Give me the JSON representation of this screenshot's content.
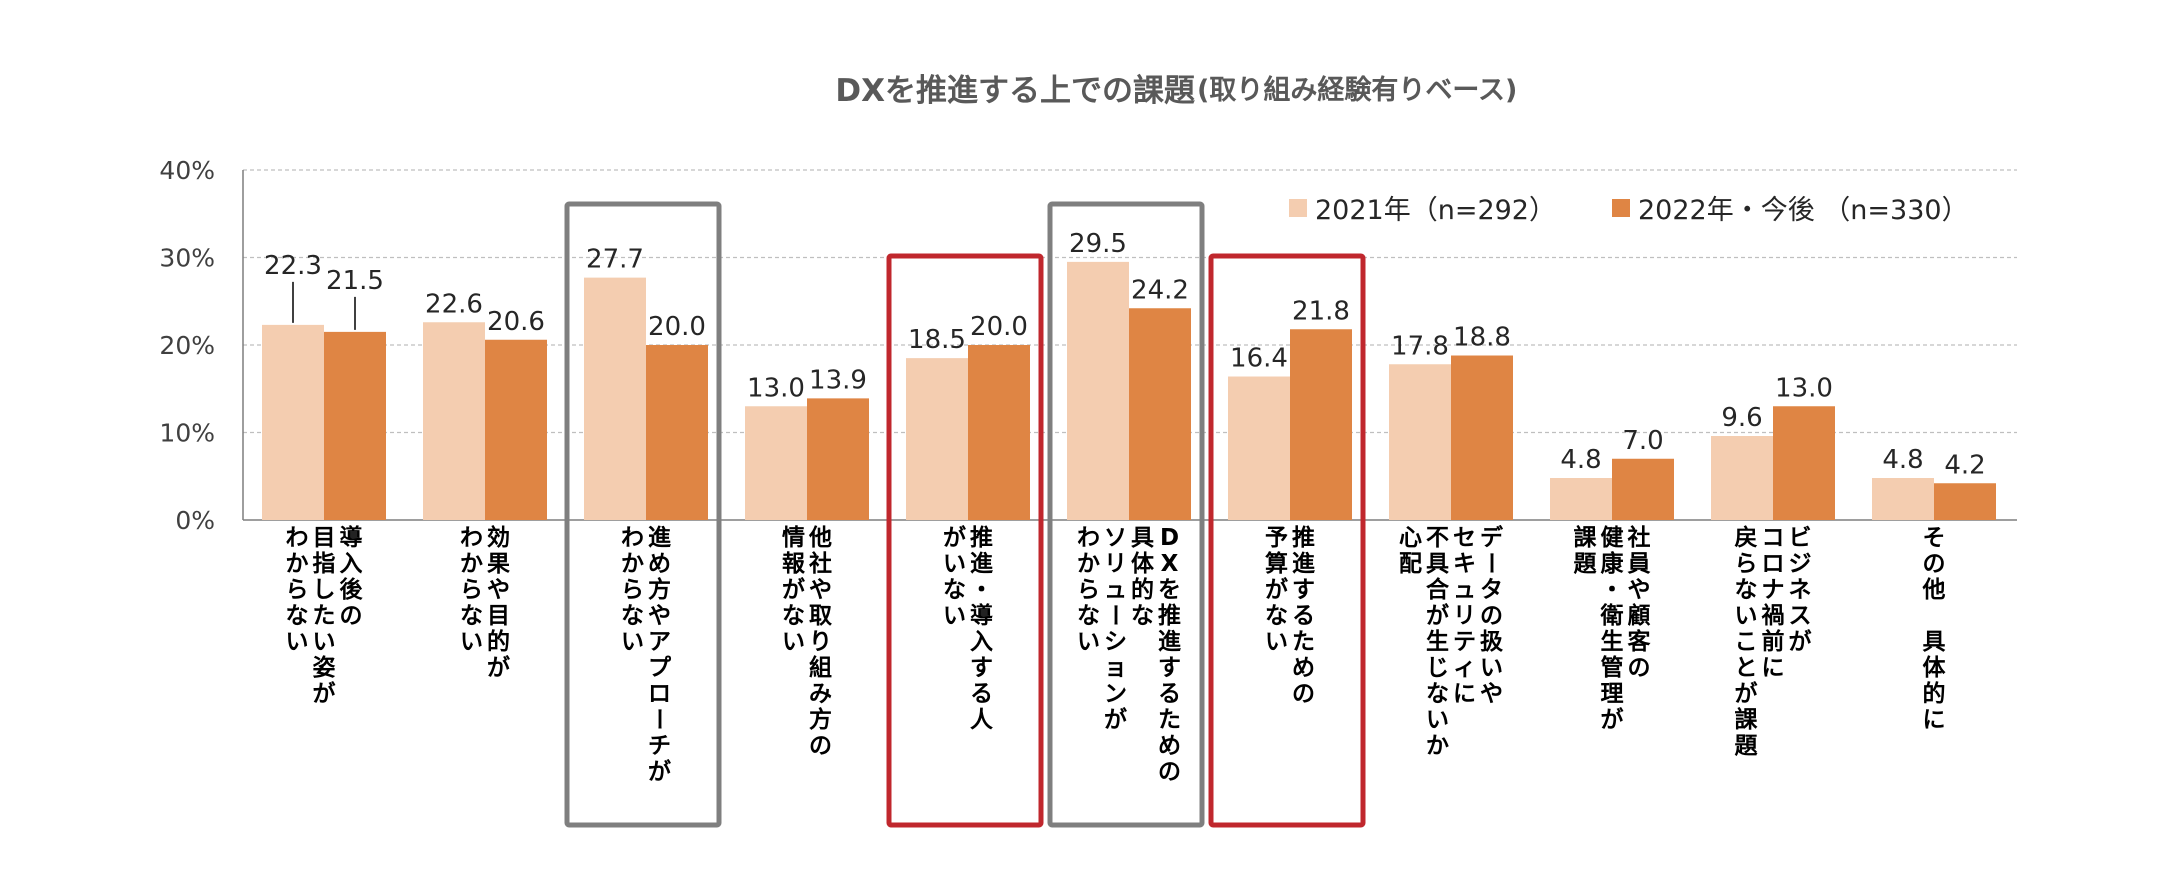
{
  "chart_data": {
    "type": "bar",
    "title": "DXを推進する上での課題",
    "subtitle": "(取り組み経験有りベース)",
    "ylim": [
      0,
      40
    ],
    "yticks": [
      "0%",
      "10%",
      "20%",
      "30%",
      "40%"
    ],
    "grid": true,
    "legend_position": "top-right",
    "series": [
      {
        "name": "2021年（n=292）",
        "color": "#f4cdb0",
        "values": [
          22.3,
          22.6,
          27.7,
          13.0,
          18.5,
          29.5,
          16.4,
          17.8,
          4.8,
          9.6,
          4.8
        ],
        "labels": [
          "22.3",
          "22.6",
          "27.7",
          "13.0",
          "18.5",
          "29.5",
          "16.4",
          "17.8",
          "4.8",
          "9.6",
          "4.8"
        ]
      },
      {
        "name": "2022年・今後 （n=330）",
        "color": "#df8544",
        "values": [
          21.5,
          20.6,
          20.0,
          13.9,
          20.0,
          24.2,
          21.8,
          18.8,
          7.0,
          13.0,
          4.2
        ],
        "labels": [
          "21.5",
          "20.6",
          "20.0",
          "13.9",
          "20.0",
          "24.2",
          "21.8",
          "18.8",
          "7.0",
          "13.0",
          "4.2"
        ]
      }
    ],
    "categories": [
      {
        "columns": [
          "導入後の",
          "目指したい姿が",
          "わからない"
        ]
      },
      {
        "columns": [
          "効果や目的が",
          "わからない"
        ]
      },
      {
        "columns": [
          "進め方やアプローチが",
          "わからない"
        ]
      },
      {
        "columns": [
          "他社や取り組み方の",
          "情報がない"
        ]
      },
      {
        "columns": [
          "推進・導入する人",
          "がいない"
        ]
      },
      {
        "columns": [
          "DXを推進するための",
          "具体的な",
          "ソリューションが",
          "わからない"
        ]
      },
      {
        "columns": [
          "推進するための",
          "予算がない"
        ]
      },
      {
        "columns": [
          "データの扱いや",
          "セキュリティに",
          "不具合が生じないか",
          "心配"
        ]
      },
      {
        "columns": [
          "社員や顧客の",
          "健康・衛生管理が",
          "課題"
        ]
      },
      {
        "columns": [
          "ビジネスが",
          "コロナ禍前に",
          "戻らないことが課題"
        ]
      },
      {
        "columns": [
          "その他　具体的に"
        ]
      }
    ],
    "highlight_boxes": [
      {
        "category_index": 2,
        "color": "#7f7f7f"
      },
      {
        "category_index": 4,
        "color": "#c0272d"
      },
      {
        "category_index": 5,
        "color": "#7f7f7f"
      },
      {
        "category_index": 6,
        "color": "#c0272d"
      }
    ]
  }
}
